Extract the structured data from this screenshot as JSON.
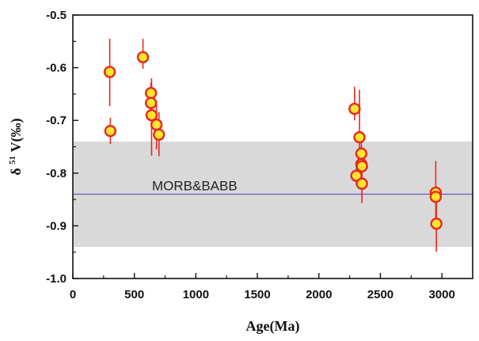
{
  "chart_data": {
    "type": "scatter",
    "title": "",
    "xlabel": "Age(Ma)",
    "ylabel_symbol": "δ",
    "ylabel_superscript": "51",
    "ylabel_rest": "V(‰)",
    "xlim": [
      0,
      3250
    ],
    "ylim": [
      -1.0,
      -0.5
    ],
    "xticks": [
      0,
      500,
      1000,
      1500,
      2000,
      2500,
      3000
    ],
    "xtick_labels": [
      "0",
      "500",
      "1000",
      "1500",
      "2000",
      "2500",
      "3000"
    ],
    "yticks": [
      -1.0,
      -0.9,
      -0.8,
      -0.7,
      -0.6,
      -0.5
    ],
    "ytick_labels": [
      "-1.0",
      "-0.9",
      "-0.8",
      "-0.7",
      "-0.6",
      "-0.5"
    ],
    "reference_band": {
      "y_low": -0.94,
      "y_high": -0.74,
      "color": "#d9d9d9"
    },
    "reference_line": {
      "y": -0.84,
      "label": "MORB&BABB",
      "color": "#6b68c9"
    },
    "marker": {
      "fill": "#ffe62e",
      "edge": "#e8281e",
      "errorbar_color": "#e8281e"
    },
    "points": [
      {
        "x": 300,
        "y": -0.608,
        "err_lo": 0.065,
        "err_hi": 0.063
      },
      {
        "x": 305,
        "y": -0.72,
        "err_lo": 0.025,
        "err_hi": 0.025
      },
      {
        "x": 570,
        "y": -0.58,
        "err_lo": 0.022,
        "err_hi": 0.035
      },
      {
        "x": 635,
        "y": -0.648,
        "err_lo": 0.012,
        "err_hi": 0.02
      },
      {
        "x": 635,
        "y": -0.667,
        "err_lo": 0.03,
        "err_hi": 0.012
      },
      {
        "x": 640,
        "y": -0.69,
        "err_lo": 0.077,
        "err_hi": 0.07
      },
      {
        "x": 680,
        "y": -0.708,
        "err_lo": 0.047,
        "err_hi": 0.045
      },
      {
        "x": 700,
        "y": -0.727,
        "err_lo": 0.041,
        "err_hi": 0.043
      },
      {
        "x": 2290,
        "y": -0.678,
        "err_lo": 0.022,
        "err_hi": 0.042
      },
      {
        "x": 2305,
        "y": -0.805,
        "err_lo": 0.018,
        "err_hi": 0.018
      },
      {
        "x": 2330,
        "y": -0.732,
        "err_lo": 0.043,
        "err_hi": 0.09
      },
      {
        "x": 2345,
        "y": -0.763,
        "err_lo": 0.03,
        "err_hi": 0.03
      },
      {
        "x": 2345,
        "y": -0.783,
        "err_lo": 0.035,
        "err_hi": 0.035
      },
      {
        "x": 2350,
        "y": -0.787,
        "err_lo": 0.02,
        "err_hi": 0.02
      },
      {
        "x": 2350,
        "y": -0.82,
        "err_lo": 0.037,
        "err_hi": 0.012
      },
      {
        "x": 2950,
        "y": -0.837,
        "err_lo": 0.06,
        "err_hi": 0.06
      },
      {
        "x": 2950,
        "y": -0.845,
        "err_lo": 0.01,
        "err_hi": 0.01
      },
      {
        "x": 2955,
        "y": -0.896,
        "err_lo": 0.053,
        "err_hi": 0.053
      }
    ]
  }
}
